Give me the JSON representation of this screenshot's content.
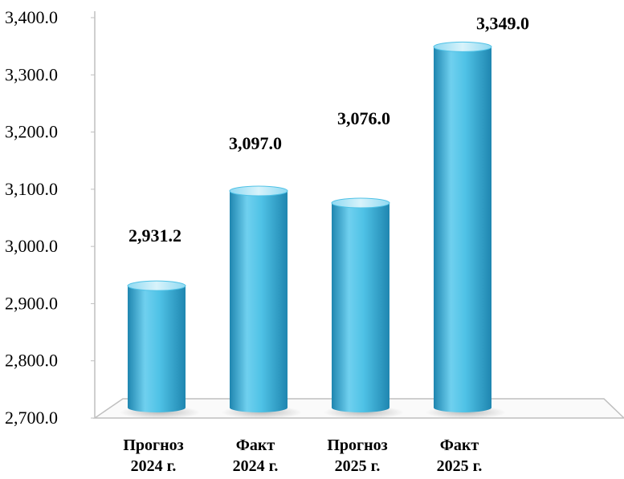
{
  "chart_data": {
    "type": "bar",
    "categories": [
      [
        "Прогноз",
        "2024 г."
      ],
      [
        "Факт",
        "2024 г."
      ],
      [
        "Прогноз",
        "2025 г."
      ],
      [
        "Факт",
        "2025 г."
      ]
    ],
    "values": [
      2931.2,
      3097.0,
      3076.0,
      3349.0
    ],
    "value_labels": [
      "2,931.2",
      "3,097.0",
      "3,076.0",
      "3,349.0"
    ],
    "y_ticks": [
      2700,
      2800,
      2900,
      3000,
      3100,
      3200,
      3300,
      3400
    ],
    "y_tick_labels": [
      "2,700.0",
      "2,800.0",
      "2,900.0",
      "3,000.0",
      "3,100.0",
      "3,200.0",
      "3,300.0",
      "3,400.0"
    ],
    "ylim": [
      2700,
      3400
    ],
    "title": "",
    "xlabel": "",
    "ylabel": "",
    "grid": false,
    "legend": "none",
    "colors": {
      "bar_light": "#bfeaf6",
      "bar_mid": "#4fc2e6",
      "bar_dark": "#1f86b0",
      "axis": "#bfbfbf"
    }
  }
}
